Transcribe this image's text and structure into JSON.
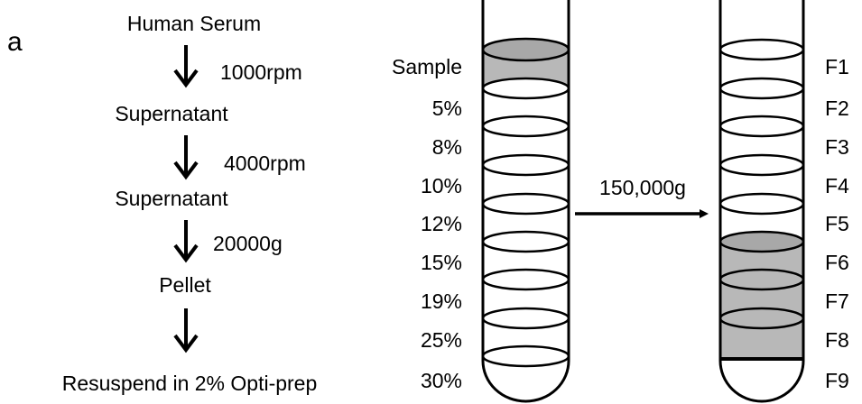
{
  "panel_label": "a",
  "flow": {
    "steps": [
      "Human Serum",
      "Supernatant",
      "Supernatant",
      "Pellet",
      "Resuspend in 2% Opti-prep"
    ],
    "conditions": [
      "1000rpm",
      "4000rpm",
      "20000g"
    ]
  },
  "gradient": {
    "labels": [
      "Sample",
      "5%",
      "8%",
      "10%",
      "12%",
      "15%",
      "19%",
      "25%",
      "30%"
    ]
  },
  "centrifugation": "150,000g",
  "fractions": [
    "F1",
    "F2",
    "F3",
    "F4",
    "F5",
    "F6",
    "F7",
    "F8",
    "F9"
  ]
}
